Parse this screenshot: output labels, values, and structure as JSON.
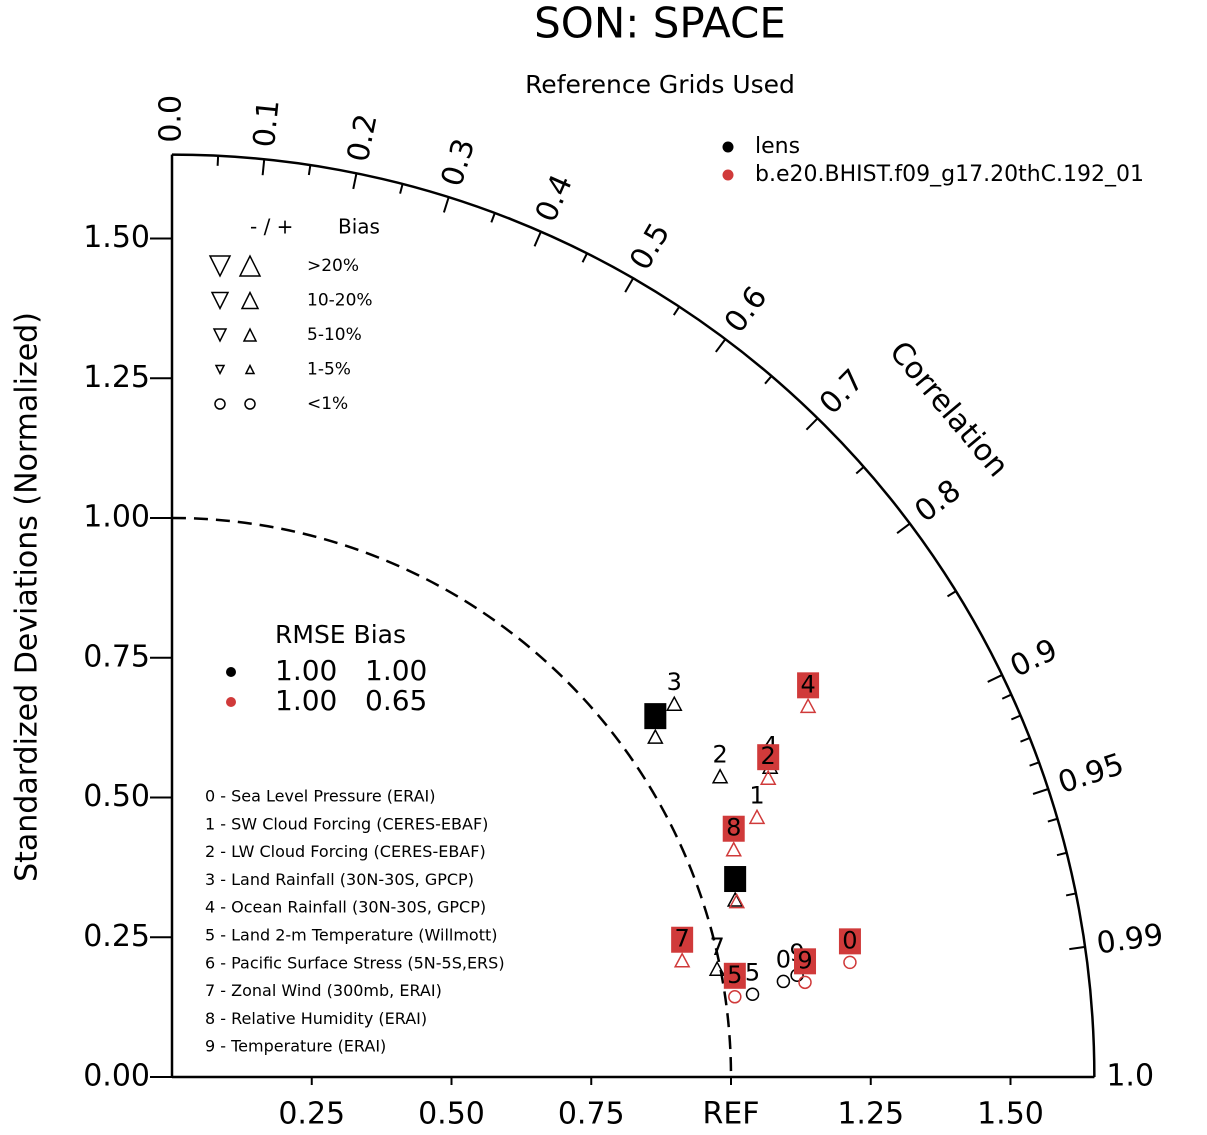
{
  "chart_data": {
    "type": "taylor",
    "title": "SON: SPACE",
    "subtitle": "Reference Grids Used",
    "ylabel": "Standardized Deviations (Normalized)",
    "corr_label": "Correlation",
    "rlim": [
      0,
      1.65
    ],
    "ref": 1,
    "std_ticks_y": [
      {
        "value": 0,
        "label": "0.00"
      },
      {
        "value": 0.25,
        "label": "0.25"
      },
      {
        "value": 0.5,
        "label": "0.50"
      },
      {
        "value": 0.75,
        "label": "0.75"
      },
      {
        "value": 1,
        "label": "1.00"
      },
      {
        "value": 1.25,
        "label": "1.25"
      },
      {
        "value": 1.5,
        "label": "1.50"
      }
    ],
    "std_ticks_x": [
      {
        "value": 0.25,
        "label": "0.25"
      },
      {
        "value": 0.5,
        "label": "0.50"
      },
      {
        "value": 0.75,
        "label": "0.75"
      },
      {
        "value": 1,
        "label": "REF"
      },
      {
        "value": 1.25,
        "label": "1.25"
      },
      {
        "value": 1.5,
        "label": "1.50"
      }
    ],
    "corr_ticks": [
      {
        "value": 0,
        "label": "0.0"
      },
      0.1,
      0.2,
      0.3,
      0.4,
      0.5,
      0.6,
      0.7,
      0.8,
      0.9,
      0.95,
      0.99,
      {
        "value": 1,
        "label": "1.0"
      }
    ],
    "corr_minor_ticks": [
      0.05,
      0.15,
      0.25,
      0.35,
      0.45,
      0.55,
      0.65,
      0.75,
      0.85,
      0.91,
      0.92,
      0.93,
      0.94,
      0.96,
      0.97,
      0.98
    ],
    "series": [
      {
        "name": "lens",
        "color": "#000000",
        "labels": [
          "3",
          "1",
          "2",
          "4",
          "6",
          "7",
          "5",
          "0",
          "9"
        ],
        "markers": [
          "triangle",
          "triangle",
          "triangle",
          "triangle",
          "triangle",
          "triangle",
          "circle",
          "circle",
          "circle"
        ],
        "label_boxed": [
          false,
          true,
          false,
          false,
          true,
          false,
          false,
          false,
          false
        ],
        "std": [
          1.119,
          1.057,
          1.118,
          1.205,
          1.056,
          0.994,
          1.049,
          1.107,
          1.133
        ],
        "corr": [
          0.803,
          0.818,
          0.877,
          0.888,
          0.954,
          0.981,
          0.99,
          0.988,
          0.987
        ],
        "stats": [
          1,
          1
        ],
        "stats_labels": [
          "1.00",
          "1.00"
        ]
      },
      {
        "name": "b.e20.BHIST.f09_g17.20thC.192_01",
        "color": "#d03a3a",
        "labels": [
          "4",
          "2",
          "1",
          "8",
          "6",
          "7",
          "5",
          "0",
          "9"
        ],
        "markers": [
          "triangle",
          "triangle",
          "triangle",
          "triangle",
          "triangle",
          "triangle",
          "circle",
          "circle",
          "circle"
        ],
        "label_boxed": [
          true,
          true,
          false,
          true,
          false,
          true,
          true,
          true,
          true
        ],
        "std": [
          1.317,
          1.193,
          1.145,
          1.084,
          1.058,
          0.936,
          1.017,
          1.23,
          1.145
        ],
        "corr": [
          0.864,
          0.894,
          0.914,
          0.927,
          0.955,
          0.975,
          0.99,
          0.986,
          0.989
        ],
        "stats": [
          1,
          0.65
        ],
        "stats_labels": [
          "1.00",
          "0.65"
        ]
      }
    ],
    "stats_header": "RMSE Bias",
    "bias_key": {
      "header": [
        "- / +",
        "Bias"
      ],
      "rows": [
        ">20%",
        "10-20%",
        "5-10%",
        "1-5%",
        "<1%"
      ]
    },
    "cases": [
      "0 - Sea Level Pressure (ERAI)",
      "1 - SW Cloud Forcing (CERES-EBAF)",
      "2 - LW Cloud Forcing (CERES-EBAF)",
      "3 - Land Rainfall (30N-30S, GPCP)",
      "4 - Ocean Rainfall (30N-30S, GPCP)",
      "5 - Land 2-m Temperature (Willmott)",
      "6 - Pacific Surface Stress (5N-5S,ERS)",
      "7 - Zonal Wind (300mb, ERAI)",
      "8 - Relative Humidity (ERAI)",
      "9 - Temperature (ERAI)"
    ]
  }
}
